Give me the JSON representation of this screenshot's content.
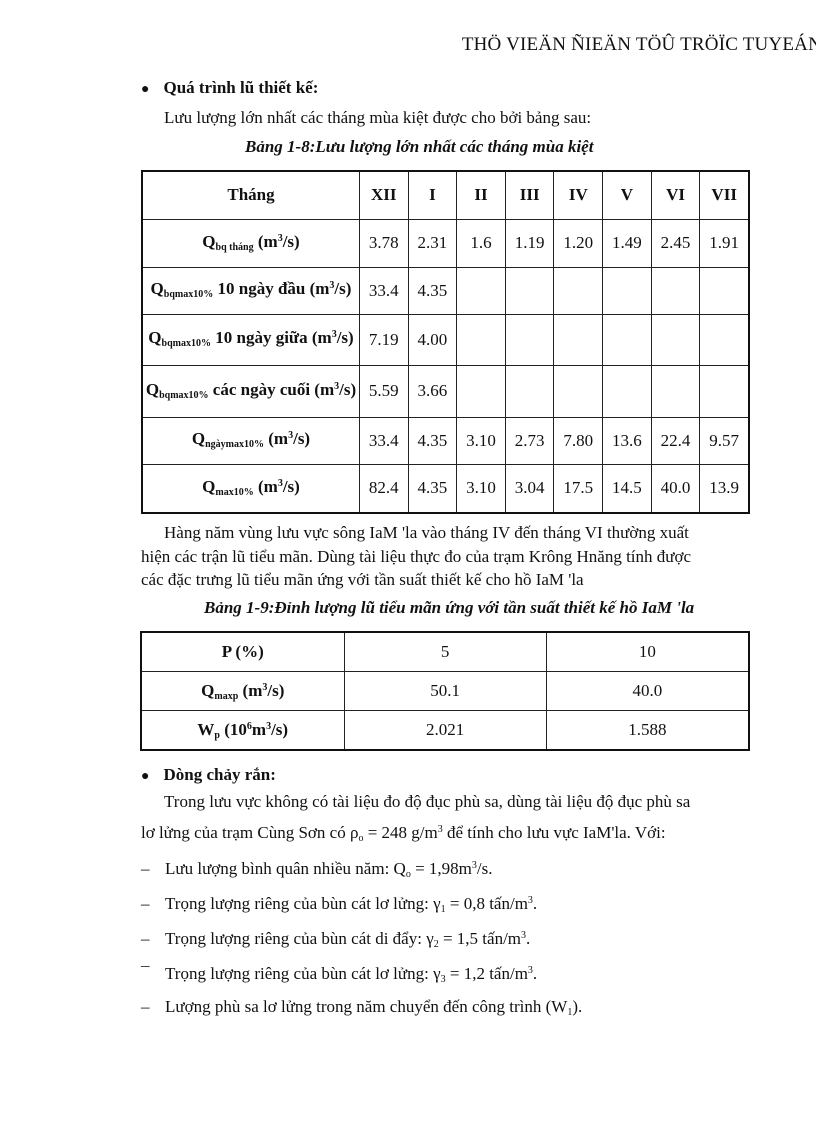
{
  "header": {
    "title": "THÖ VIEÄN ÑIEÄN TÖÛ TRÖÏC TUYEÁN"
  },
  "section1": {
    "heading": "Quá trình lũ thiết kế:",
    "intro": "Lưu lượng lớn nhất các tháng mùa kiệt được cho bởi bảng sau:",
    "caption": "Bảng 1-8:Lưu lượng lớn nhất các tháng mùa kiệt"
  },
  "table1": {
    "header": {
      "label": "Tháng",
      "months": [
        "XII",
        "I",
        "II",
        "III",
        "IV",
        "V",
        "VI",
        "VII"
      ]
    },
    "rows": [
      {
        "q": "Q",
        "sub": "bq tháng",
        "rest": " (m",
        "sup": "3",
        "tail": "/s)",
        "values": [
          "3.78",
          "2.31",
          "1.6",
          "1.19",
          "1.20",
          "1.49",
          "2.45",
          "1.91"
        ]
      },
      {
        "q": "Q",
        "sub": "bqmax10%",
        "rest": " 10 ngày đầu (m",
        "sup": "3",
        "tail": "/s)",
        "values": [
          "33.4",
          "4.35",
          "",
          "",
          "",
          "",
          "",
          ""
        ]
      },
      {
        "q": "Q",
        "sub": "bqmax10%",
        "rest": " 10 ngày giữa (m",
        "sup": "3",
        "tail": "/s)",
        "values": [
          "7.19",
          "4.00",
          "",
          "",
          "",
          "",
          "",
          ""
        ]
      },
      {
        "q": "Q",
        "sub": "bqmax10%",
        "rest": " các ngày cuối (m",
        "sup": "3",
        "tail": "/s)",
        "values": [
          "5.59",
          "3.66",
          "",
          "",
          "",
          "",
          "",
          ""
        ]
      },
      {
        "q": "Q",
        "sub": "ngàymax10%",
        "rest": " (m",
        "sup": "3",
        "tail": "/s)",
        "values": [
          "33.4",
          "4.35",
          "3.10",
          "2.73",
          "7.80",
          "13.6",
          "22.4",
          "9.57"
        ]
      },
      {
        "q": "Q",
        "sub": "max10%",
        "rest": " (m",
        "sup": "3",
        "tail": "/s)",
        "values": [
          "82.4",
          "4.35",
          "3.10",
          "3.04",
          "17.5",
          "14.5",
          "40.0",
          "13.9"
        ]
      }
    ]
  },
  "paragraph2": {
    "line1": "Hàng năm vùng lưu vực sông IaM 'la vào tháng IV đến tháng VI thường xuất",
    "line2": "hiện các trận lũ tiểu mãn. Dùng tài liệu thực đo của trạm Krông Hnăng tính được",
    "line3": "các đặc trưng lũ tiểu mãn ứng với tần suất thiết kế cho hồ IaM 'la",
    "caption": "Bảng 1-9:Đỉnh lượng lũ tiểu mãn ứng với tần suất thiết kế hồ IaM 'la"
  },
  "table2": {
    "rows": [
      {
        "label": "P (%)",
        "values": [
          "5",
          "10"
        ]
      },
      {
        "q": "Q",
        "sub": "maxp",
        "rest": " (m",
        "sup": "3",
        "tail": "/s)",
        "values": [
          "50.1",
          "40.0"
        ]
      },
      {
        "q": "W",
        "sub": "p",
        "rest": " (10",
        "sup": "6",
        "mid": "m",
        "sup2": "3",
        "tail": "/s)",
        "values": [
          "2.021",
          "1.588"
        ]
      }
    ]
  },
  "section3": {
    "heading": "Dòng chảy rắn:",
    "line1": "Trong lưu vực không có tài liệu đo độ đục phù sa, dùng tài liệu độ đục phù sa",
    "line2a": "lơ lửng của trạm Cùng Sơn có ρ",
    "line2sub": "o",
    "line2b": " = 248 g/m",
    "line2sup": "3",
    "line2c": " để tính cho lưu vực IaM'la. Với:",
    "items": [
      {
        "dash": "–",
        "a": "Lưu lượng bình quân nhiều năm: Q",
        "sub": "o",
        "b": " = 1,98m",
        "sup": "3",
        "c": "/s."
      },
      {
        "dash": "–",
        "a": "Trọng lượng riêng của bùn cát lơ lửng: γ",
        "sub": "1",
        "b": " = 0,8 tấn/m",
        "sup": "3",
        "c": "."
      },
      {
        "dash": "–",
        "a": "Trọng lượng riêng của bùn cát di đẩy: γ",
        "sub": "2",
        "b": " = 1,5 tấn/m",
        "sup": "3",
        "c": "."
      },
      {
        "dash": "¯",
        "a": "Trọng lượng riêng của bùn cát lơ lửng: γ",
        "sub": "3",
        "b": " = 1,2 tấn/m",
        "sup": "3",
        "c": "."
      },
      {
        "dash": "–",
        "a": "Lượng phù sa lơ lửng trong năm chuyển đến công trình (W",
        "sub": "1",
        "b": ").",
        "sup": "",
        "c": ""
      }
    ]
  }
}
